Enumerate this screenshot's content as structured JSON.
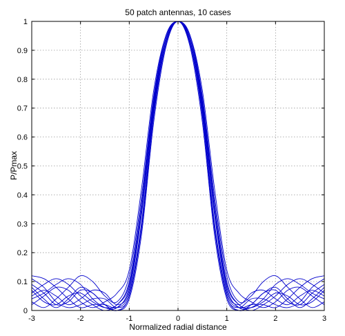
{
  "chart_data": {
    "type": "line",
    "title": "50 patch antennas, 10 cases",
    "xlabel": "Normalized radial distance",
    "ylabel": "P/Pmax",
    "xlim": [
      -3,
      3
    ],
    "ylim": [
      0,
      1
    ],
    "xticks": [
      -3,
      -2,
      -1,
      0,
      1,
      2,
      3
    ],
    "yticks": [
      0,
      0.1,
      0.2,
      0.3,
      0.4,
      0.5,
      0.6,
      0.7,
      0.8,
      0.9,
      1
    ],
    "xtick_labels": [
      "-3",
      "-2",
      "-1",
      "0",
      "1",
      "2",
      "3"
    ],
    "ytick_labels": [
      "0",
      "0.1",
      "0.2",
      "0.3",
      "0.4",
      "0.5",
      "0.6",
      "0.7",
      "0.8",
      "0.9",
      "1"
    ],
    "grid": true,
    "grid_style": "dotted",
    "line_color": "#0000cc",
    "x": [
      -3,
      -2.75,
      -2.5,
      -2.25,
      -2,
      -1.75,
      -1.5,
      -1.25,
      -1,
      -0.75,
      -0.5,
      -0.25,
      0,
      0.25,
      0.5,
      0.75,
      1,
      1.25,
      1.5,
      1.75,
      2,
      2.25,
      2.5,
      2.75,
      3
    ],
    "series": [
      {
        "values": [
          0.12,
          0.11,
          0.08,
          0.04,
          0.01,
          0.02,
          0.02,
          0.01,
          0.06,
          0.3,
          0.69,
          0.93,
          1.0,
          0.93,
          0.69,
          0.3,
          0.06,
          0.01,
          0.02,
          0.02,
          0.01,
          0.04,
          0.08,
          0.11,
          0.12
        ]
      },
      {
        "values": [
          0.09,
          0.06,
          0.02,
          0.03,
          0.07,
          0.06,
          0.02,
          0.0,
          0.05,
          0.28,
          0.67,
          0.92,
          1.0,
          0.92,
          0.67,
          0.28,
          0.05,
          0.0,
          0.02,
          0.06,
          0.07,
          0.03,
          0.02,
          0.06,
          0.09
        ]
      },
      {
        "values": [
          0.06,
          0.09,
          0.11,
          0.09,
          0.05,
          0.02,
          0.0,
          0.02,
          0.09,
          0.35,
          0.72,
          0.94,
          1.0,
          0.94,
          0.72,
          0.35,
          0.09,
          0.02,
          0.0,
          0.02,
          0.05,
          0.09,
          0.11,
          0.09,
          0.06
        ]
      },
      {
        "values": [
          0.03,
          0.01,
          0.04,
          0.08,
          0.12,
          0.1,
          0.05,
          0.03,
          0.12,
          0.39,
          0.74,
          0.95,
          1.0,
          0.95,
          0.74,
          0.39,
          0.12,
          0.03,
          0.05,
          0.1,
          0.12,
          0.08,
          0.04,
          0.01,
          0.03
        ]
      },
      {
        "values": [
          0.05,
          0.07,
          0.05,
          0.02,
          0.04,
          0.07,
          0.06,
          0.02,
          0.07,
          0.33,
          0.7,
          0.93,
          1.0,
          0.93,
          0.7,
          0.33,
          0.07,
          0.02,
          0.06,
          0.07,
          0.04,
          0.02,
          0.05,
          0.07,
          0.05
        ]
      },
      {
        "values": [
          0.08,
          0.04,
          0.01,
          0.04,
          0.08,
          0.06,
          0.02,
          0.0,
          0.04,
          0.26,
          0.65,
          0.91,
          1.0,
          0.91,
          0.65,
          0.26,
          0.04,
          0.0,
          0.02,
          0.06,
          0.08,
          0.04,
          0.01,
          0.04,
          0.08
        ]
      },
      {
        "values": [
          0.02,
          0.05,
          0.08,
          0.07,
          0.03,
          0.01,
          0.03,
          0.06,
          0.14,
          0.42,
          0.76,
          0.95,
          1.0,
          0.95,
          0.76,
          0.42,
          0.14,
          0.06,
          0.03,
          0.01,
          0.03,
          0.07,
          0.08,
          0.05,
          0.02
        ]
      },
      {
        "values": [
          0.11,
          0.08,
          0.03,
          0.01,
          0.02,
          0.04,
          0.04,
          0.01,
          0.05,
          0.29,
          0.68,
          0.92,
          1.0,
          0.92,
          0.68,
          0.29,
          0.05,
          0.01,
          0.04,
          0.04,
          0.02,
          0.01,
          0.03,
          0.08,
          0.11
        ]
      },
      {
        "values": [
          0.04,
          0.06,
          0.09,
          0.11,
          0.09,
          0.04,
          0.01,
          0.01,
          0.08,
          0.34,
          0.71,
          0.94,
          1.0,
          0.94,
          0.71,
          0.34,
          0.08,
          0.01,
          0.01,
          0.04,
          0.09,
          0.11,
          0.09,
          0.06,
          0.04
        ]
      },
      {
        "values": [
          0.07,
          0.03,
          0.02,
          0.05,
          0.06,
          0.03,
          0.01,
          0.02,
          0.1,
          0.37,
          0.73,
          0.94,
          1.0,
          0.94,
          0.73,
          0.37,
          0.1,
          0.02,
          0.01,
          0.03,
          0.06,
          0.05,
          0.02,
          0.03,
          0.07
        ]
      }
    ]
  }
}
